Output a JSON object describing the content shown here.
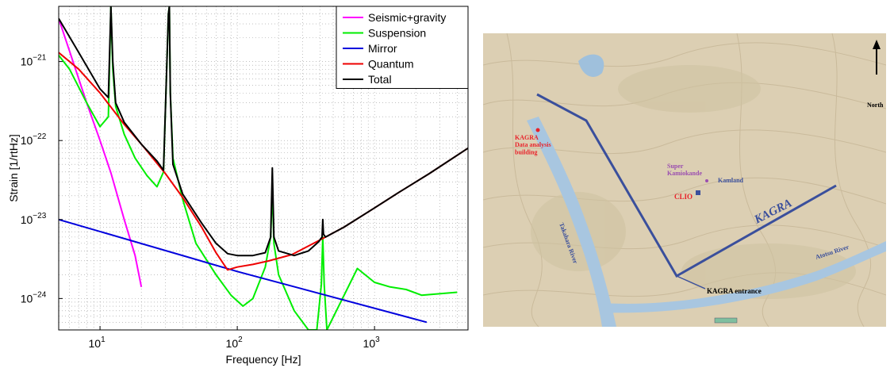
{
  "chart_data": {
    "type": "line",
    "xlabel": "Frequency [Hz]",
    "ylabel": "Strain [1/rtHz]",
    "xscale": "log",
    "yscale": "log",
    "xlim": [
      5,
      4800
    ],
    "ylim": [
      4e-25,
      5e-21
    ],
    "grid": true,
    "legend_position": "top-right",
    "x_ticks": [
      {
        "value": 10,
        "label": "10",
        "exp": "1"
      },
      {
        "value": 100,
        "label": "10",
        "exp": "2"
      },
      {
        "value": 1000,
        "label": "10",
        "exp": "3"
      }
    ],
    "y_ticks": [
      {
        "value": 1e-24,
        "label": "10",
        "exp": "−24"
      },
      {
        "value": 1e-23,
        "label": "10",
        "exp": "−23"
      },
      {
        "value": 1e-22,
        "label": "10",
        "exp": "−22"
      },
      {
        "value": 1e-21,
        "label": "10",
        "exp": "−21"
      }
    ],
    "series": [
      {
        "name": "Seismic+gravity",
        "color": "#ff00ff",
        "x": [
          5,
          6,
          8,
          10,
          12,
          15,
          18,
          20
        ],
        "y": [
          3.5e-21,
          1.35e-21,
          3e-22,
          1e-22,
          3.9e-23,
          1e-23,
          3.5e-24,
          1.4e-24
        ]
      },
      {
        "name": "Suspension",
        "color": "#00ee00",
        "x": [
          5,
          6,
          8,
          10,
          11.5,
          12,
          12.4,
          13,
          15,
          18,
          22,
          26,
          29,
          31.5,
          32,
          32.5,
          34,
          40,
          50,
          70,
          90,
          110,
          130,
          160,
          175,
          180,
          185,
          200,
          260,
          330,
          380,
          410,
          420,
          430,
          450,
          750,
          1000,
          1300,
          1700,
          2200,
          4000
        ],
        "y": [
          1.2e-21,
          8e-22,
          3e-22,
          1.5e-22,
          2e-22,
          5e-21,
          8e-22,
          2.7e-22,
          1.2e-22,
          6e-23,
          3.6e-23,
          2.6e-23,
          4e-23,
          4e-21,
          5e-21,
          4e-22,
          6e-23,
          1.8e-23,
          5e-24,
          2e-24,
          1.1e-24,
          8e-25,
          1e-24,
          2.5e-24,
          6e-24,
          2.5e-23,
          5e-24,
          2e-24,
          7e-25,
          4e-25,
          4e-25,
          1.5e-24,
          6e-24,
          1.5e-24,
          4e-25,
          2.4e-24,
          1.6e-24,
          1.4e-24,
          1.3e-24,
          1.1e-24,
          1.2e-24
        ]
      },
      {
        "name": "Mirror",
        "color": "#0000dd",
        "x": [
          5,
          100,
          2400
        ],
        "y": [
          1e-23,
          2.2e-24,
          5e-25
        ]
      },
      {
        "name": "Quantum",
        "color": "#ee0000",
        "x": [
          5,
          7,
          10,
          15,
          20,
          30,
          40,
          55,
          70,
          85,
          100,
          130,
          170,
          250,
          400,
          600,
          1000,
          1500,
          2500,
          4800
        ],
        "y": [
          1.3e-21,
          8e-22,
          4e-22,
          1.6e-22,
          9e-23,
          3.8e-23,
          1.9e-23,
          8e-24,
          3.8e-24,
          2.3e-24,
          2.5e-24,
          2.7e-24,
          3e-24,
          3.6e-24,
          5.5e-24,
          8e-24,
          1.4e-23,
          2.2e-23,
          3.8e-23,
          8e-23
        ]
      },
      {
        "name": "Total",
        "color": "#000000",
        "x": [
          5,
          7,
          10,
          11.5,
          12,
          12.4,
          13,
          15,
          20,
          26,
          29,
          31.5,
          32,
          32.5,
          34,
          40,
          55,
          70,
          85,
          100,
          130,
          160,
          175,
          180,
          185,
          200,
          260,
          330,
          390,
          415,
          420,
          425,
          440,
          600,
          1000,
          1500,
          2500,
          4800
        ],
        "y": [
          3.5e-21,
          1.3e-21,
          4.5e-22,
          3.5e-22,
          5e-21,
          1e-21,
          3e-22,
          1.7e-22,
          9e-23,
          5.5e-23,
          4.2e-23,
          4e-21,
          5e-21,
          4e-22,
          5e-23,
          2.1e-23,
          9e-24,
          5e-24,
          3.7e-24,
          3.5e-24,
          3.5e-24,
          3.8e-24,
          6e-24,
          4.5e-23,
          6e-24,
          4e-24,
          3.5e-24,
          4e-24,
          5.2e-24,
          6e-24,
          1e-23,
          6.5e-24,
          6e-24,
          8e-24,
          1.4e-23,
          2.2e-23,
          3.8e-23,
          8e-23
        ]
      }
    ]
  },
  "map": {
    "north_label": "North",
    "kagra_label": "KAGRA",
    "data_building_label": "KAGRA\nData analysis\nbuilding",
    "superk_label": "Super\nKamiokande",
    "kamland_label": "Kamland",
    "clio_label": "CLIO",
    "entrance_label": "KAGRA entrance",
    "takahara_label": "Takahara River",
    "atotsu_label": "Atotsu River",
    "colors": {
      "tunnel": "#3a4f9c",
      "building": "#e8222a",
      "superk": "#9b4fb0",
      "river": "#a8c6e0",
      "terrain": "#d9ccb0"
    }
  }
}
